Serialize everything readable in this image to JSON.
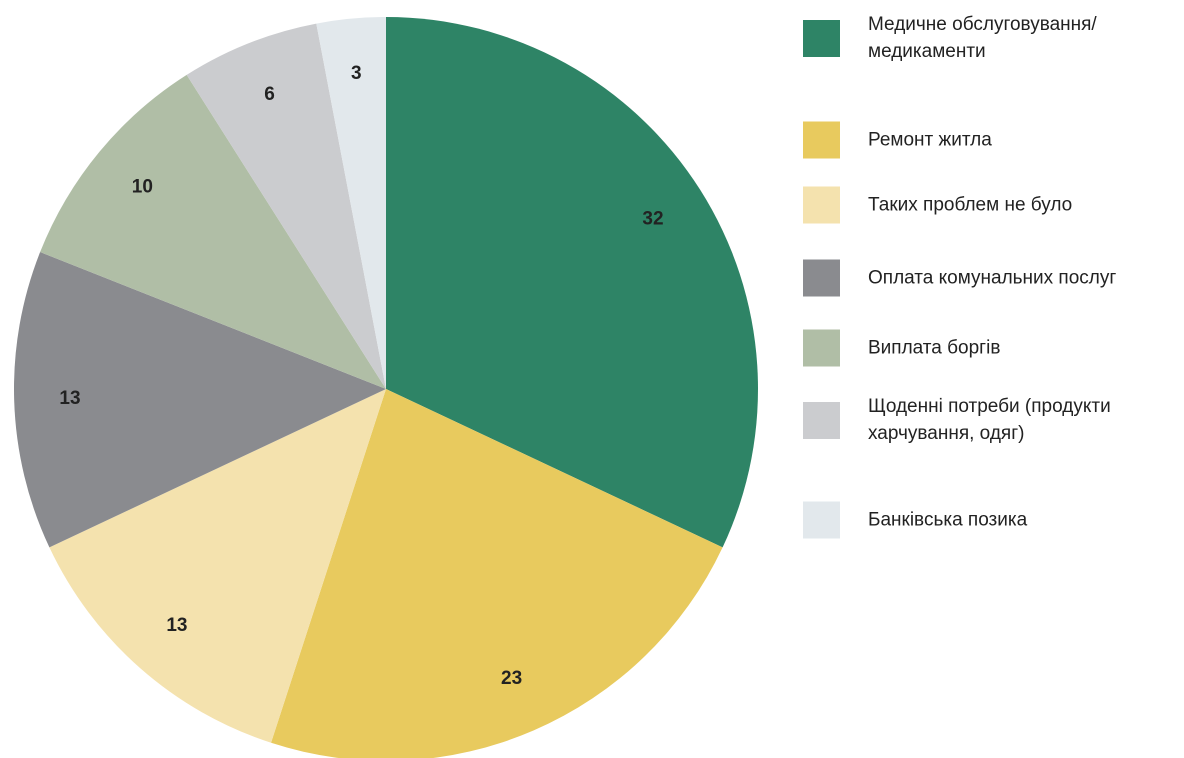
{
  "chart_data": {
    "type": "pie",
    "categories": [
      "Медичне обслуговування/ медикаменти",
      "Ремонт житла",
      "Таких проблем не було",
      "Оплата комунальних послуг",
      "Виплата боргів",
      "Щоденні потреби (продукти харчування, одяг)",
      "Банківська позика"
    ],
    "values": [
      32,
      23,
      13,
      13,
      10,
      6,
      3
    ],
    "colors": [
      "#2e8466",
      "#e8ca5e",
      "#f4e2ae",
      "#8a8b8f",
      "#b0bea6",
      "#cbcccf",
      "#e2e8ec"
    ],
    "legend": "right"
  }
}
